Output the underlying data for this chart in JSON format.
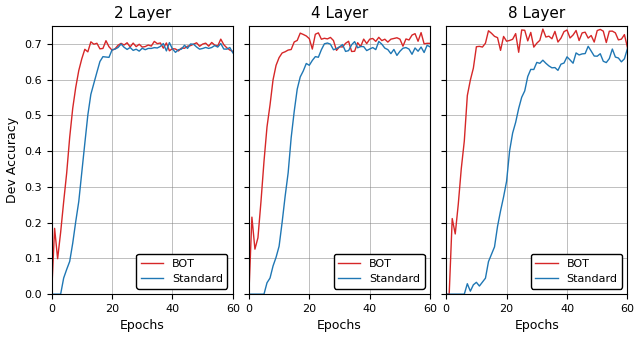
{
  "titles": [
    "2 Layer",
    "4 Layer",
    "8 Layer"
  ],
  "xlabel": "Epochs",
  "ylabel": "Dev Accuracy",
  "xlim": [
    0,
    60
  ],
  "ylim": [
    0.0,
    0.75
  ],
  "yticks": [
    0.0,
    0.1,
    0.2,
    0.3,
    0.4,
    0.5,
    0.6,
    0.7
  ],
  "xticks": [
    0,
    20,
    40,
    60
  ],
  "bot_color": "#d62728",
  "std_color": "#1f77b4",
  "legend_labels": [
    "BOT",
    "Standard"
  ],
  "n_epochs": 61,
  "figsize": [
    6.4,
    3.38
  ],
  "dpi": 100
}
